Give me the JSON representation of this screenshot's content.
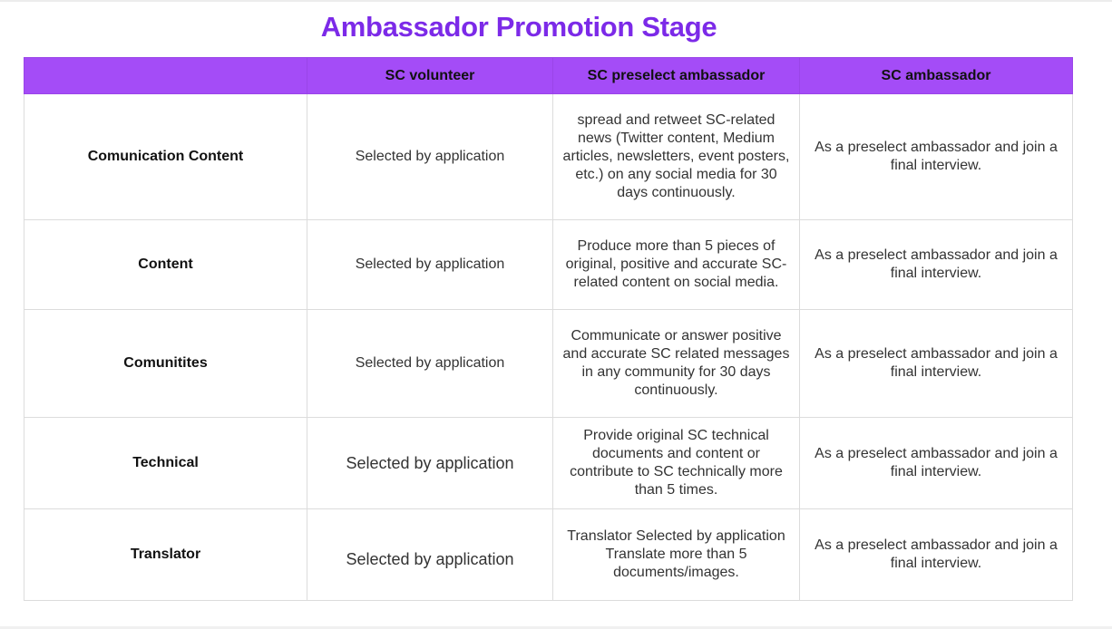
{
  "title": "Ambassador Promotion Stage",
  "accent_color": "#a44cf7",
  "title_color": "#7c2ae8",
  "table": {
    "headers": [
      "",
      "SC volunteer",
      "SC preselect ambassador",
      "SC ambassador"
    ],
    "rows": [
      {
        "category": "Comunication Content",
        "volunteer": "Selected by application",
        "preselect": "spread and retweet SC-related news (Twitter content, Medium articles, newsletters, event posters, etc.) on any social media for 30 days continuously.",
        "ambassador": "As a preselect ambassador and join a final interview."
      },
      {
        "category": "Content",
        "volunteer": "Selected by application",
        "preselect": "Produce more than 5 pieces of original, positive and accurate SC-related content on social media.",
        "ambassador": "As a preselect ambassador and join a final interview."
      },
      {
        "category": "Comunitites",
        "volunteer": "Selected by application",
        "preselect": "Communicate or answer positive and accurate SC related messages in any community for 30 days continuously.",
        "ambassador": "As a preselect ambassador and join a final interview."
      },
      {
        "category": "Technical",
        "volunteer": "Selected by application",
        "preselect": "Provide original SC technical documents and content or contribute to SC technically more than 5 times.",
        "ambassador": "As a preselect ambassador and join a final interview."
      },
      {
        "category": "Translator",
        "volunteer": "Selected by application",
        "preselect": "Translator Selected by application Translate more than 5 documents/images.",
        "ambassador": "As a preselect ambassador and join a final interview."
      }
    ]
  }
}
